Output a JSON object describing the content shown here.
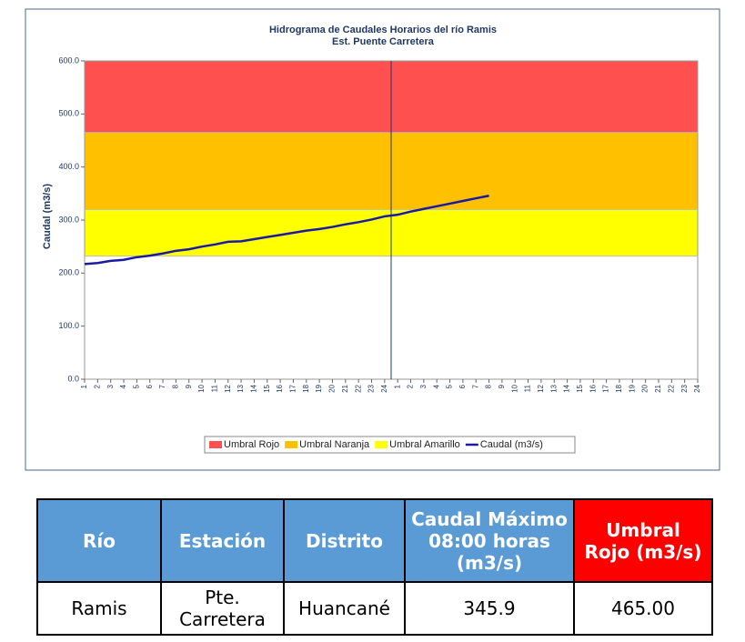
{
  "chart_data": {
    "type": "line",
    "title": "Hidrograma de Caudales Horarios del río Ramis",
    "subtitle": "Est. Puente Carretera",
    "y_label": "Caudal (m3/s)",
    "categories": [
      "1",
      "2",
      "3",
      "4",
      "5",
      "6",
      "7",
      "8",
      "9",
      "10",
      "11",
      "12",
      "13",
      "14",
      "15",
      "16",
      "17",
      "18",
      "19",
      "20",
      "21",
      "22",
      "23",
      "24",
      "1",
      "2",
      "3",
      "4",
      "5",
      "6",
      "7",
      "8",
      "9",
      "10",
      "11",
      "12",
      "13",
      "14",
      "15",
      "16",
      "17",
      "18",
      "19",
      "20",
      "21",
      "22",
      "23",
      "24"
    ],
    "bands": [
      {
        "name": "Umbral Rojo",
        "color": "#ff5050",
        "value": 465
      },
      {
        "name": "Umbral Naranja",
        "color": "#ffc000",
        "value": 320
      },
      {
        "name": "Umbral Amarillo",
        "color": "#ffff00",
        "value": 232
      }
    ],
    "series": [
      {
        "name": "Caudal (m3/s)",
        "color": "#1a1aa6",
        "values": [
          217,
          219,
          223,
          225,
          230,
          233,
          237,
          242,
          245,
          250,
          254,
          259,
          260,
          264,
          268,
          272,
          276,
          280,
          283,
          287,
          292,
          296,
          301,
          307,
          310,
          316,
          321,
          326,
          331,
          336,
          341,
          345.9,
          null,
          null,
          null,
          null,
          null,
          null,
          null,
          null,
          null,
          null,
          null,
          null,
          null,
          null,
          null,
          null
        ]
      }
    ],
    "ylim": [
      0,
      600
    ],
    "yticks": [
      {
        "value": 0,
        "label": "0.0"
      },
      {
        "value": 100,
        "label": "100.0"
      },
      {
        "value": 200,
        "label": "200.0"
      },
      {
        "value": 300,
        "label": "300.0"
      },
      {
        "value": 400,
        "label": "400.0"
      },
      {
        "value": 500,
        "label": "500.0"
      },
      {
        "value": 600,
        "label": "600.0"
      }
    ]
  },
  "table": {
    "headers": [
      "Río",
      "Estación",
      "Distrito",
      "Caudal Máximo 08:00 horas (m3/s)",
      "Umbral Rojo (m3/s)"
    ],
    "rows": [
      [
        "Ramis",
        "Pte. Carretera",
        "Huancané",
        "345.9",
        "465.00"
      ]
    ]
  }
}
